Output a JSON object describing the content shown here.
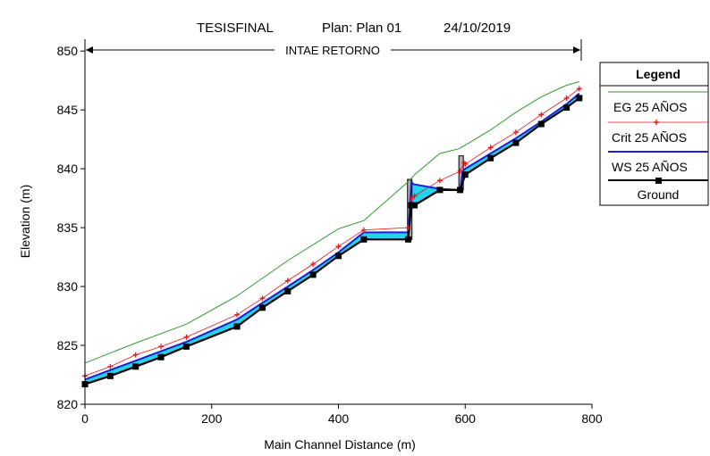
{
  "header": {
    "project": "TESISFINAL",
    "plan": "Plan: Plan 01",
    "date": "24/10/2019"
  },
  "reach_label": "INTAE RETORNO",
  "legend": {
    "title": "Legend",
    "items": [
      {
        "label": "EG  25 AÑOS",
        "color": "#2e9a2e",
        "marker": "none"
      },
      {
        "label": "Crit  25 AÑOS",
        "color": "#e8151c",
        "marker": "plus"
      },
      {
        "label": "WS  25 AÑOS",
        "color": "#1f1fd6",
        "marker": "none"
      },
      {
        "label": "Ground",
        "color": "#000000",
        "marker": "square"
      }
    ]
  },
  "colors": {
    "water_fill": "#22d4ee",
    "structure_fill": "#b4b4b4",
    "eg": "#2e9a2e",
    "crit": "#e8151c",
    "ws": "#1f1fd6",
    "ground": "#000000"
  },
  "chart_data": {
    "type": "line",
    "title": "TESISFINAL     Plan: Plan 01     24/10/2019",
    "xlabel": "Main Channel Distance (m)",
    "ylabel": "Elevation (m)",
    "xlim": [
      0,
      800
    ],
    "ylim": [
      820,
      851
    ],
    "xticks": [
      0,
      200,
      400,
      600,
      800
    ],
    "yticks": [
      820,
      825,
      830,
      835,
      840,
      845,
      850
    ],
    "grid": false,
    "legend_position": "right",
    "series": [
      {
        "name": "EG  25 AÑOS",
        "x": [
          0,
          80,
          160,
          240,
          320,
          400,
          440,
          510,
          520,
          560,
          590,
          600,
          640,
          680,
          720,
          760,
          780
        ],
        "y": [
          823.5,
          825.2,
          826.8,
          829.2,
          832.2,
          834.9,
          835.6,
          838.9,
          839.5,
          841.3,
          841.7,
          842.0,
          843.3,
          844.8,
          846.1,
          847.1,
          847.4
        ]
      },
      {
        "name": "Crit  25 AÑOS",
        "x": [
          0,
          40,
          80,
          120,
          160,
          240,
          280,
          320,
          360,
          400,
          440,
          510,
          516,
          520,
          560,
          592,
          598,
          600,
          640,
          680,
          720,
          760,
          780
        ],
        "y": [
          822.4,
          823.2,
          824.2,
          824.9,
          825.7,
          827.6,
          829.0,
          830.5,
          831.9,
          833.4,
          834.8,
          835.0,
          837.5,
          837.7,
          839.0,
          839.8,
          840.5,
          840.4,
          841.8,
          843.1,
          844.6,
          846.0,
          846.8
        ]
      },
      {
        "name": "WS  25 AÑOS",
        "x": [
          0,
          40,
          80,
          120,
          160,
          240,
          280,
          320,
          360,
          400,
          440,
          510,
          515,
          518,
          560,
          592,
          596,
          600,
          640,
          680,
          720,
          760,
          780
        ],
        "y": [
          822.1,
          822.9,
          823.7,
          824.5,
          825.3,
          827.2,
          828.6,
          830.0,
          831.4,
          832.9,
          834.6,
          834.6,
          838.9,
          838.7,
          838.3,
          838.2,
          839.8,
          840.0,
          841.3,
          842.6,
          844.0,
          845.5,
          846.4
        ]
      },
      {
        "name": "Ground",
        "x": [
          0,
          40,
          80,
          120,
          160,
          240,
          280,
          320,
          360,
          400,
          440,
          510,
          515,
          520,
          560,
          592,
          600,
          640,
          680,
          720,
          760,
          780
        ],
        "y": [
          821.7,
          822.4,
          823.2,
          824.0,
          824.9,
          826.6,
          828.2,
          829.6,
          831.0,
          832.6,
          834.0,
          834.0,
          836.9,
          836.9,
          838.2,
          838.2,
          839.5,
          840.9,
          842.2,
          843.8,
          845.2,
          846.0
        ]
      }
    ],
    "structures": [
      {
        "x": [
          509,
          516
        ],
        "y": [
          834.0,
          839.1
        ]
      },
      {
        "x": [
          590,
          597
        ],
        "y": [
          838.2,
          841.1
        ]
      }
    ]
  }
}
